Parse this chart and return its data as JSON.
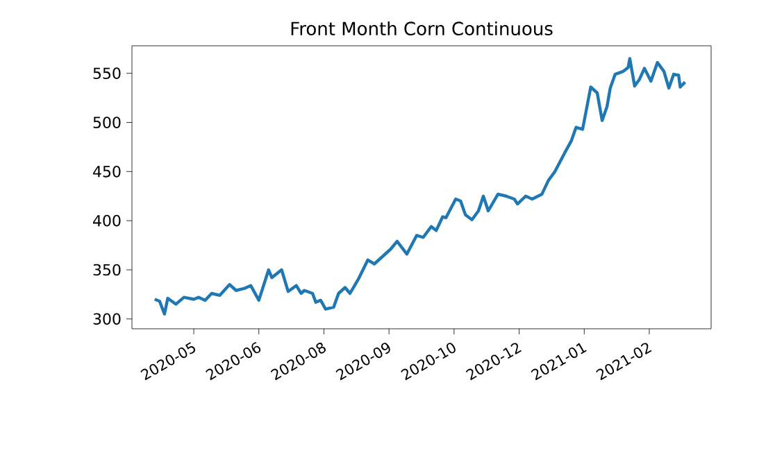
{
  "chart_data": {
    "type": "line",
    "title": "Front Month Corn Continuous",
    "x": [
      "2020-04-26",
      "2020-04-29",
      "2020-05-02",
      "2020-05-04",
      "2020-05-09",
      "2020-05-14",
      "2020-05-20",
      "2020-05-23",
      "2020-05-27",
      "2020-05-31",
      "2020-06-05",
      "2020-06-11",
      "2020-06-15",
      "2020-06-20",
      "2020-06-24",
      "2020-06-29",
      "2020-07-05",
      "2020-07-07",
      "2020-07-13",
      "2020-07-17",
      "2020-07-22",
      "2020-07-25",
      "2020-07-27",
      "2020-08-01",
      "2020-08-03",
      "2020-08-06",
      "2020-08-09",
      "2020-08-14",
      "2020-08-17",
      "2020-08-21",
      "2020-08-24",
      "2020-08-29",
      "2020-09-04",
      "2020-09-08",
      "2020-09-14",
      "2020-09-18",
      "2020-09-22",
      "2020-09-28",
      "2020-10-04",
      "2020-10-08",
      "2020-10-13",
      "2020-10-16",
      "2020-10-20",
      "2020-10-22",
      "2020-10-28",
      "2020-10-31",
      "2020-11-03",
      "2020-11-07",
      "2020-11-11",
      "2020-11-14",
      "2020-11-17",
      "2020-11-23",
      "2020-11-28",
      "2020-12-03",
      "2020-12-05",
      "2020-12-10",
      "2020-12-14",
      "2020-12-20",
      "2020-12-24",
      "2020-12-28",
      "2021-01-03",
      "2021-01-07",
      "2021-01-10",
      "2021-01-14",
      "2021-01-19",
      "2021-01-23",
      "2021-01-26",
      "2021-01-29",
      "2021-01-31",
      "2021-02-03",
      "2021-02-08",
      "2021-02-11",
      "2021-02-12",
      "2021-02-15",
      "2021-02-18",
      "2021-02-21",
      "2021-02-25",
      "2021-03-01",
      "2021-03-05",
      "2021-03-08",
      "2021-03-11",
      "2021-03-14",
      "2021-03-15",
      "2021-03-18"
    ],
    "series": [
      {
        "color": "#1f77b4",
        "values": [
          320,
          318,
          305,
          321,
          315,
          322,
          320,
          322,
          319,
          326,
          324,
          335,
          329,
          331,
          334,
          319,
          350,
          342,
          350,
          328,
          334,
          326,
          329,
          326,
          317,
          319,
          310,
          312,
          326,
          332,
          326,
          340,
          360,
          356,
          365,
          371,
          379,
          366,
          385,
          383,
          394,
          390,
          404,
          403,
          422,
          420,
          406,
          401,
          410,
          425,
          410,
          427,
          425,
          422,
          417,
          425,
          422,
          427,
          441,
          450,
          469,
          481,
          495,
          493,
          536,
          530,
          502,
          516,
          535,
          549,
          552,
          556,
          565,
          537,
          544,
          555,
          542,
          561,
          552,
          535,
          549,
          548,
          536,
          541
        ]
      }
    ],
    "xlim": [
      "2020-04-12",
      "2021-04-03"
    ],
    "xticks": [
      {
        "value": "2020-05-20",
        "label": "2020-05"
      },
      {
        "value": "2020-06-29",
        "label": "2020-06"
      },
      {
        "value": "2020-08-08",
        "label": "2020-08"
      },
      {
        "value": "2020-09-17",
        "label": "2020-09"
      },
      {
        "value": "2020-10-27",
        "label": "2020-10"
      },
      {
        "value": "2020-12-06",
        "label": "2020-12"
      },
      {
        "value": "2021-01-15",
        "label": "2021-01"
      },
      {
        "value": "2021-02-24",
        "label": "2021-02"
      }
    ],
    "ylim": [
      290,
      578
    ],
    "yticks": [
      300,
      350,
      400,
      450,
      500,
      550
    ],
    "grid": false,
    "marker": "none",
    "line_style": "solid"
  }
}
